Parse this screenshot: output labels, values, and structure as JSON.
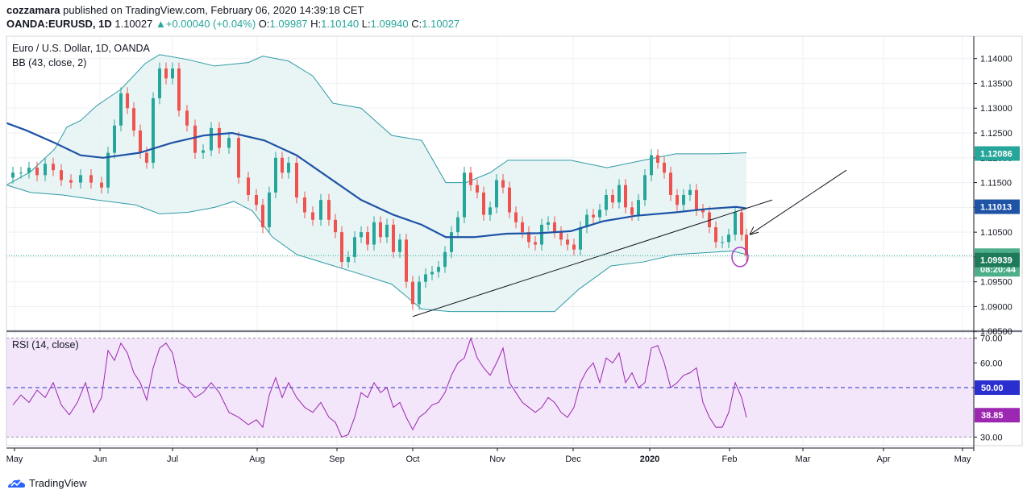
{
  "header": {
    "publisher": "cozzamara",
    "published_line": "published on TradingView.com, February 06, 2020 14:39:18 CET",
    "symbol": "OANDA:EURUSD, 1D",
    "last": "1.10027",
    "change": "+0.00040 (+0.04%)",
    "o_label": "O:",
    "o": "1.09987",
    "h_label": "H:",
    "h": "1.10140",
    "l_label": "L:",
    "l": "1.09940",
    "c_label": "C:",
    "c": "1.10027"
  },
  "footer": {
    "brand": "TradingView"
  },
  "colors": {
    "up": "#26a69a",
    "down": "#ef5350",
    "bb_basis": "#1e53a6",
    "bb_band": "#2f9aa6",
    "bb_fill": "#e4f2f2",
    "rsi": "#9c27b0",
    "rsi_fill": "#f3e5fa",
    "grid": "#eef0f3",
    "axis": "#131722"
  },
  "chart_data": [
    {
      "type": "candlestick",
      "title": "Euro / U.S. Dollar, 1D, OANDA",
      "indicator_label": "BB (43, close, 2)",
      "x_labels": [
        "May",
        "Jun",
        "Jul",
        "Aug",
        "Sep",
        "Oct",
        "Nov",
        "Dec",
        "2020",
        "Feb",
        "Mar",
        "Apr",
        "May"
      ],
      "y_ticks": [
        "1.14000",
        "1.13500",
        "1.13000",
        "1.12500",
        "1.12000",
        "1.11500",
        "1.11000",
        "1.10500",
        "1.10000",
        "1.09500",
        "1.09000",
        "1.08500"
      ],
      "ylim": [
        1.0852,
        1.1445
      ],
      "price_labels": {
        "upper": "1.12086",
        "basis": "1.11013",
        "last": "1.10027",
        "countdown": "08:20:44",
        "lower": "1.09939"
      },
      "bb_upper": [
        [
          0,
          1.1145
        ],
        [
          30,
          1.1172
        ],
        [
          60,
          1.1218
        ],
        [
          75,
          1.1262
        ],
        [
          92,
          1.1275
        ],
        [
          112,
          1.1305
        ],
        [
          142,
          1.1338
        ],
        [
          172,
          1.139
        ],
        [
          190,
          1.1408
        ],
        [
          225,
          1.1398
        ],
        [
          258,
          1.1385
        ],
        [
          300,
          1.1392
        ],
        [
          318,
          1.1405
        ],
        [
          350,
          1.1395
        ],
        [
          380,
          1.1365
        ],
        [
          405,
          1.131
        ],
        [
          440,
          1.13
        ],
        [
          478,
          1.1245
        ],
        [
          515,
          1.1235
        ],
        [
          545,
          1.115
        ],
        [
          570,
          1.115
        ],
        [
          600,
          1.117
        ],
        [
          622,
          1.1195
        ],
        [
          700,
          1.1195
        ],
        [
          745,
          1.118
        ],
        [
          790,
          1.1195
        ],
        [
          830,
          1.1208
        ],
        [
          880,
          1.1208
        ],
        [
          918,
          1.121
        ]
      ],
      "bb_basis": [
        [
          0,
          1.127
        ],
        [
          25,
          1.1255
        ],
        [
          60,
          1.123
        ],
        [
          92,
          1.1205
        ],
        [
          120,
          1.12
        ],
        [
          165,
          1.121
        ],
        [
          205,
          1.123
        ],
        [
          245,
          1.1245
        ],
        [
          280,
          1.125
        ],
        [
          320,
          1.1235
        ],
        [
          360,
          1.1205
        ],
        [
          400,
          1.116
        ],
        [
          440,
          1.1115
        ],
        [
          480,
          1.1085
        ],
        [
          515,
          1.1065
        ],
        [
          545,
          1.104
        ],
        [
          580,
          1.104
        ],
        [
          620,
          1.1047
        ],
        [
          660,
          1.1048
        ],
        [
          700,
          1.1052
        ],
        [
          740,
          1.1072
        ],
        [
          780,
          1.1083
        ],
        [
          830,
          1.109
        ],
        [
          870,
          1.1097
        ],
        [
          905,
          1.1101
        ],
        [
          918,
          1.1098
        ]
      ],
      "bb_lower": [
        [
          0,
          1.1145
        ],
        [
          30,
          1.113
        ],
        [
          70,
          1.1125
        ],
        [
          112,
          1.1115
        ],
        [
          160,
          1.1105
        ],
        [
          190,
          1.1087
        ],
        [
          225,
          1.109
        ],
        [
          258,
          1.11
        ],
        [
          282,
          1.1112
        ],
        [
          305,
          1.1093
        ],
        [
          330,
          1.104
        ],
        [
          360,
          1.1005
        ],
        [
          400,
          1.0985
        ],
        [
          440,
          1.0965
        ],
        [
          478,
          1.0945
        ],
        [
          515,
          1.0895
        ],
        [
          550,
          1.089
        ],
        [
          600,
          1.089
        ],
        [
          680,
          1.089
        ],
        [
          710,
          1.0935
        ],
        [
          750,
          1.0982
        ],
        [
          790,
          1.099
        ],
        [
          830,
          1.1005
        ],
        [
          860,
          1.1008
        ],
        [
          900,
          1.1012
        ],
        [
          918,
          1.1005
        ]
      ],
      "trendline": [
        [
          512,
          1.088
        ],
        [
          958,
          1.1115
        ]
      ],
      "arrow": [
        [
          1050,
          1.1175
        ],
        [
          930,
          1.1045
        ]
      ],
      "circle_marker": [
        918,
        1.1
      ],
      "candles_close_series": [
        [
          8,
          1.117
        ],
        [
          18,
          1.117
        ],
        [
          28,
          1.118
        ],
        [
          38,
          1.1165
        ],
        [
          48,
          1.1188
        ],
        [
          58,
          1.1175
        ],
        [
          68,
          1.1155
        ],
        [
          80,
          1.115
        ],
        [
          92,
          1.1165
        ],
        [
          105,
          1.115
        ],
        [
          118,
          1.114
        ],
        [
          126,
          1.121
        ],
        [
          134,
          1.1265
        ],
        [
          142,
          1.133
        ],
        [
          150,
          1.13
        ],
        [
          158,
          1.1255
        ],
        [
          166,
          1.121
        ],
        [
          174,
          1.119
        ],
        [
          182,
          1.132
        ],
        [
          190,
          1.138
        ],
        [
          198,
          1.136
        ],
        [
          206,
          1.138
        ],
        [
          214,
          1.1295
        ],
        [
          224,
          1.1265
        ],
        [
          234,
          1.121
        ],
        [
          244,
          1.1215
        ],
        [
          254,
          1.126
        ],
        [
          264,
          1.122
        ],
        [
          276,
          1.124
        ],
        [
          288,
          1.116
        ],
        [
          300,
          1.1125
        ],
        [
          310,
          1.1105
        ],
        [
          318,
          1.106
        ],
        [
          326,
          1.113
        ],
        [
          334,
          1.12
        ],
        [
          342,
          1.117
        ],
        [
          350,
          1.119
        ],
        [
          360,
          1.112
        ],
        [
          370,
          1.109
        ],
        [
          380,
          1.1075
        ],
        [
          390,
          1.1115
        ],
        [
          400,
          1.1075
        ],
        [
          408,
          1.105
        ],
        [
          416,
          1.099
        ],
        [
          424,
          1.1
        ],
        [
          432,
          1.104
        ],
        [
          440,
          1.105
        ],
        [
          448,
          1.1025
        ],
        [
          456,
          1.107
        ],
        [
          464,
          1.104
        ],
        [
          472,
          1.1065
        ],
        [
          480,
          1.101
        ],
        [
          488,
          1.1035
        ],
        [
          496,
          1.095
        ],
        [
          504,
          1.0905
        ],
        [
          512,
          1.095
        ],
        [
          520,
          1.0965
        ],
        [
          528,
          1.097
        ],
        [
          536,
          1.098
        ],
        [
          544,
          1.101
        ],
        [
          552,
          1.105
        ],
        [
          560,
          1.108
        ],
        [
          568,
          1.117
        ],
        [
          576,
          1.1145
        ],
        [
          584,
          1.113
        ],
        [
          592,
          1.1085
        ],
        [
          600,
          1.11
        ],
        [
          608,
          1.1155
        ],
        [
          616,
          1.114
        ],
        [
          624,
          1.109
        ],
        [
          632,
          1.107
        ],
        [
          640,
          1.105
        ],
        [
          648,
          1.103
        ],
        [
          656,
          1.1025
        ],
        [
          664,
          1.1065
        ],
        [
          672,
          1.107
        ],
        [
          680,
          1.105
        ],
        [
          688,
          1.1035
        ],
        [
          696,
          1.1025
        ],
        [
          704,
          1.1015
        ],
        [
          712,
          1.106
        ],
        [
          720,
          1.1085
        ],
        [
          728,
          1.108
        ],
        [
          736,
          1.1095
        ],
        [
          744,
          1.1125
        ],
        [
          752,
          1.111
        ],
        [
          760,
          1.1145
        ],
        [
          768,
          1.11
        ],
        [
          776,
          1.1085
        ],
        [
          784,
          1.1115
        ],
        [
          792,
          1.1165
        ],
        [
          800,
          1.1205
        ],
        [
          808,
          1.119
        ],
        [
          816,
          1.117
        ],
        [
          824,
          1.1125
        ],
        [
          832,
          1.1105
        ],
        [
          840,
          1.1125
        ],
        [
          848,
          1.1135
        ],
        [
          856,
          1.1095
        ],
        [
          864,
          1.109
        ],
        [
          872,
          1.106
        ],
        [
          880,
          1.103
        ],
        [
          888,
          1.103
        ],
        [
          896,
          1.1045
        ],
        [
          904,
          1.109
        ],
        [
          912,
          1.1045
        ],
        [
          918,
          1.1003
        ]
      ]
    },
    {
      "type": "line",
      "title": "RSI (14, close)",
      "y_ticks": [
        "70.00",
        "60.00",
        "50.00",
        "30.00"
      ],
      "ylim": [
        28.5,
        72.5
      ],
      "level_50_label": "50.00",
      "last_label": "38.85",
      "x": [
        8,
        18,
        28,
        38,
        48,
        58,
        68,
        78,
        88,
        98,
        108,
        118,
        126,
        134,
        142,
        150,
        158,
        166,
        174,
        182,
        190,
        198,
        206,
        214,
        224,
        234,
        244,
        254,
        264,
        276,
        288,
        300,
        310,
        318,
        326,
        334,
        342,
        350,
        360,
        370,
        380,
        390,
        400,
        408,
        416,
        424,
        432,
        440,
        448,
        456,
        464,
        472,
        480,
        488,
        496,
        504,
        512,
        520,
        528,
        536,
        544,
        552,
        560,
        568,
        576,
        584,
        592,
        600,
        608,
        616,
        624,
        632,
        640,
        648,
        656,
        664,
        672,
        680,
        688,
        696,
        704,
        712,
        720,
        728,
        736,
        744,
        752,
        760,
        768,
        776,
        784,
        792,
        800,
        808,
        816,
        824,
        832,
        840,
        848,
        856,
        864,
        872,
        880,
        888,
        896,
        904,
        912,
        918
      ],
      "values": [
        43,
        47,
        44,
        49,
        46,
        52,
        43,
        39,
        44,
        52,
        40,
        46,
        65,
        61,
        68,
        64,
        56,
        52,
        45,
        58,
        66,
        68,
        64,
        52,
        50,
        46,
        48,
        52,
        48,
        40,
        38,
        35,
        37,
        34,
        47,
        54,
        46,
        52,
        46,
        42,
        40,
        44,
        38,
        36,
        30,
        31,
        38,
        48,
        46,
        52,
        48,
        50,
        42,
        44,
        38,
        33,
        38,
        40,
        43,
        44,
        48,
        55,
        60,
        62,
        70,
        62,
        58,
        55,
        60,
        66,
        52,
        48,
        44,
        42,
        40,
        42,
        46,
        44,
        40,
        38,
        42,
        52,
        57,
        60,
        52,
        62,
        60,
        64,
        52,
        56,
        50,
        52,
        66,
        67,
        60,
        50,
        52,
        55,
        56,
        58,
        44,
        38,
        34,
        34,
        40,
        52,
        46,
        38
      ]
    }
  ]
}
